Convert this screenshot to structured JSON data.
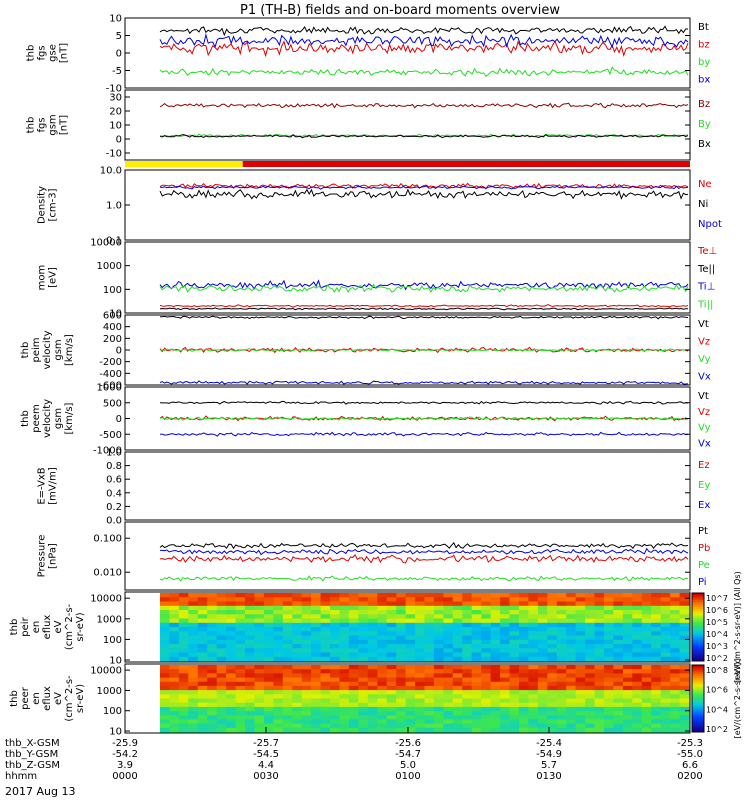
{
  "title": "P1 (TH-B) fields and on-board moments overview",
  "date": "2017 Aug 13",
  "colors": {
    "black": "#000000",
    "red": "#e00000",
    "green": "#22dd22",
    "blue": "#0000e0",
    "darkred": "#8b0000",
    "yellow": "#ffee00",
    "lightgreen": "#7cfc00"
  },
  "chart_data": [
    {
      "type": "line",
      "id": "fgs_gse",
      "ylabel": [
        "thb",
        "fgs",
        "gse",
        "[nT]"
      ],
      "ylim": [
        -10,
        10
      ],
      "yticks": [
        "10",
        "5",
        "0",
        "-5",
        "-10"
      ],
      "ytick_values": [
        10,
        5,
        0,
        -5,
        -10
      ],
      "series": [
        {
          "name": "Bt",
          "color": "black",
          "level": 6.5,
          "noise": 0.8
        },
        {
          "name": "bz",
          "color": "red",
          "level": 1.5,
          "noise": 1.3
        },
        {
          "name": "by",
          "color": "green",
          "level": -5.5,
          "noise": 0.8
        },
        {
          "name": "bx",
          "color": "blue",
          "level": 3.5,
          "noise": 1.2
        }
      ]
    },
    {
      "type": "line",
      "id": "fgs_gsm",
      "ylabel": [
        "thb",
        "fgs",
        "gsm",
        "[nT]"
      ],
      "ylim": [
        -15,
        35
      ],
      "yticks": [
        "30",
        "20",
        "10",
        "0",
        "-10"
      ],
      "ytick_values": [
        30,
        20,
        10,
        0,
        -10
      ],
      "series": [
        {
          "name": "Bz",
          "color": "darkred",
          "level": 24,
          "noise": 1.2
        },
        {
          "name": "By",
          "color": "green",
          "level": 2.5,
          "noise": 0.7
        },
        {
          "name": "Bx",
          "color": "black",
          "level": 2,
          "noise": 0.7
        }
      ]
    },
    {
      "type": "bar-status",
      "id": "mode_bar",
      "segments": [
        {
          "from": "0000",
          "to": "0025",
          "color": "yellow"
        },
        {
          "from": "0025",
          "to": "0200",
          "color": "red"
        }
      ]
    },
    {
      "type": "line",
      "id": "density",
      "log": true,
      "ylabel": [
        "Density",
        "[cm-3]"
      ],
      "ylim": [
        0.1,
        10
      ],
      "yticks": [
        "10.0",
        "1.0",
        "0.1"
      ],
      "ytick_values": [
        10,
        1,
        0.1
      ],
      "series": [
        {
          "name": "Ne",
          "color": "red",
          "level": 3.5,
          "noise": 0.05
        },
        {
          "name": "Ni",
          "color": "black",
          "level": 2,
          "noise": 0.1
        },
        {
          "name": "Npot",
          "color": "blue",
          "level": 3.2,
          "noise": 0.03
        }
      ]
    },
    {
      "type": "line",
      "id": "temperature",
      "log": true,
      "ylabel": [
        "mom",
        "[eV]"
      ],
      "ylim": [
        10,
        10000
      ],
      "yticks": [
        "10000",
        "1000",
        "100",
        "10"
      ],
      "ytick_values": [
        10000,
        1000,
        100,
        10
      ],
      "series": [
        {
          "name": "Te⊥",
          "color": "red",
          "level": 20,
          "noise": 0.03
        },
        {
          "name": "Te||",
          "color": "black",
          "level": 15,
          "noise": 0.03
        },
        {
          "name": "Ti⊥",
          "color": "blue",
          "level": 150,
          "noise": 0.12
        },
        {
          "name": "Ti||",
          "color": "green",
          "level": 110,
          "noise": 0.12
        }
      ]
    },
    {
      "type": "line",
      "id": "vi_gsm",
      "ylabel": [
        "thb",
        "peim",
        "velocity",
        "gsm",
        "[km/s]"
      ],
      "ylim": [
        -600,
        600
      ],
      "yticks": [
        "600",
        "400",
        "200",
        "0",
        "-200",
        "-400",
        "-600"
      ],
      "ytick_values": [
        600,
        400,
        200,
        0,
        -200,
        -400,
        -600
      ],
      "series": [
        {
          "name": "Vt",
          "color": "black",
          "level": 560,
          "noise": 15
        },
        {
          "name": "Vz",
          "color": "red",
          "level": 0,
          "noise": 30
        },
        {
          "name": "Vy",
          "color": "green",
          "level": 0,
          "noise": 15
        },
        {
          "name": "Vx",
          "color": "blue",
          "level": -560,
          "noise": 20
        }
      ]
    },
    {
      "type": "line",
      "id": "ve_gsm",
      "ylabel": [
        "thb",
        "peem",
        "velocity",
        "gsm",
        "[km/s]"
      ],
      "ylim": [
        -1000,
        1000
      ],
      "yticks": [
        "1000",
        "500",
        "0",
        "-500",
        "-1000"
      ],
      "ytick_values": [
        1000,
        500,
        0,
        -500,
        -1000
      ],
      "series": [
        {
          "name": "Vt",
          "color": "black",
          "level": 500,
          "noise": 30
        },
        {
          "name": "Vz",
          "color": "red",
          "level": 0,
          "noise": 50
        },
        {
          "name": "Vy",
          "color": "green",
          "level": 0,
          "noise": 35
        },
        {
          "name": "Vx",
          "color": "blue",
          "level": -500,
          "noise": 40
        }
      ]
    },
    {
      "type": "line",
      "id": "efield",
      "ylabel": [
        "E=-VxB",
        "[mV/m]"
      ],
      "ylim": [
        0,
        1
      ],
      "yticks": [
        "1.0",
        "0.8",
        "0.6",
        "0.4",
        "0.2",
        "0.0"
      ],
      "ytick_values": [
        1,
        0.8,
        0.6,
        0.4,
        0.2,
        0
      ],
      "series": [
        {
          "name": "Ez",
          "color": "red"
        },
        {
          "name": "Ey",
          "color": "green"
        },
        {
          "name": "Ex",
          "color": "blue"
        }
      ]
    },
    {
      "type": "line",
      "id": "pressure",
      "log": true,
      "ylabel": [
        "Pressure",
        "[nPa]"
      ],
      "ylim": [
        0.003,
        0.3
      ],
      "yticks": [
        "0.100",
        "0.010"
      ],
      "ytick_values": [
        0.1,
        0.01
      ],
      "series": [
        {
          "name": "Pt",
          "color": "black",
          "level": 0.06,
          "noise": 0.06
        },
        {
          "name": "Pb",
          "color": "red",
          "level": 0.025,
          "noise": 0.08
        },
        {
          "name": "Pe",
          "color": "green",
          "level": 0.0065,
          "noise": 0.05
        },
        {
          "name": "Pi",
          "color": "blue",
          "level": 0.04,
          "noise": 0.06
        }
      ]
    },
    {
      "type": "heatmap",
      "id": "peir_eflux",
      "log": true,
      "ylabel": [
        "thb",
        "peir",
        "en",
        "eflux",
        "eV",
        "(cm^2-s-",
        "sr-eV)"
      ],
      "ylim": [
        8,
        20000
      ],
      "yticks": [
        "10000",
        "1000",
        "100",
        "10"
      ],
      "ytick_values": [
        10000,
        1000,
        100,
        10
      ],
      "colorbar": {
        "label": "[eV/(cm^2-s-sr-eV)] (All Qs)",
        "ticks": [
          "10^7",
          "10^6",
          "10^5",
          "10^4",
          "10^3",
          "10^2"
        ]
      }
    },
    {
      "type": "heatmap",
      "id": "peer_eflux",
      "log": true,
      "ylabel": [
        "thb",
        "peer",
        "en",
        "eflux",
        "eV",
        "(cm^2-s-",
        "sr-eV)"
      ],
      "ylim": [
        8,
        20000
      ],
      "yticks": [
        "10000",
        "1000",
        "100",
        "10"
      ],
      "ytick_values": [
        10000,
        1000,
        100,
        10
      ],
      "colorbar": {
        "label": "[eV/(cm^2-s-sr-eV)]",
        "ticks": [
          "10^8",
          "10^6",
          "10^4",
          "10^2"
        ]
      }
    }
  ],
  "xaxis": {
    "rows": [
      {
        "label": "thb_X-GSM",
        "values": [
          "-25.9",
          "-25.7",
          "-25.6",
          "-25.4",
          "-25.3"
        ]
      },
      {
        "label": "thb_Y-GSM",
        "values": [
          "-54.2",
          "-54.5",
          "-54.7",
          "-54.9",
          "-55.0"
        ]
      },
      {
        "label": "thb_Z-GSM",
        "values": [
          "3.9",
          "4.4",
          "5.0",
          "5.7",
          "6.6"
        ]
      },
      {
        "label": "hhmm",
        "values": [
          "0000",
          "0030",
          "0100",
          "0130",
          "0200"
        ]
      }
    ],
    "range": [
      "0000",
      "0200"
    ]
  }
}
